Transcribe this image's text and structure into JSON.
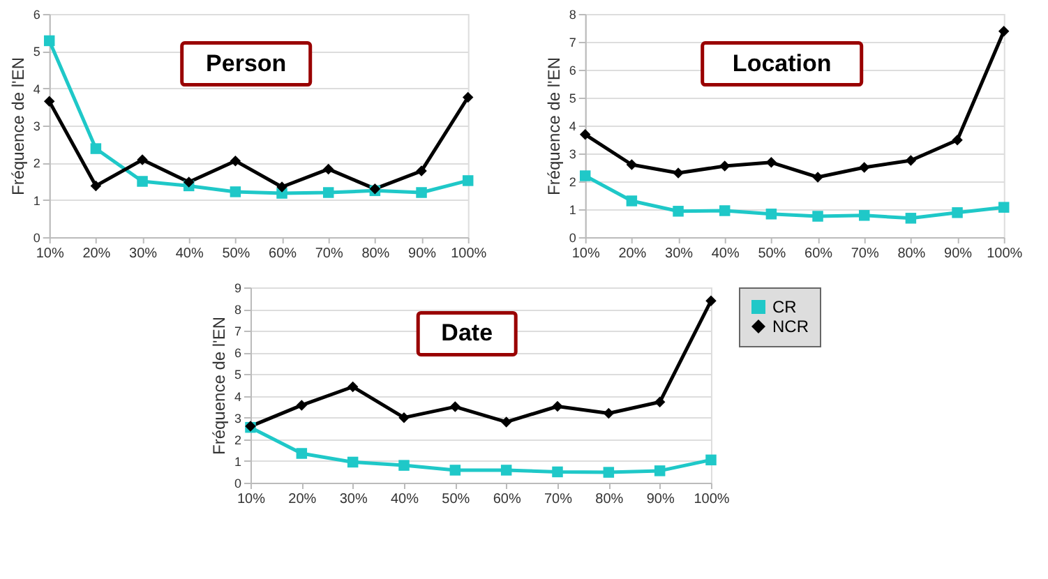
{
  "chart_data": [
    {
      "type": "line",
      "title": "Person",
      "ylabel": "Fréquence de l'EN",
      "categories": [
        "10%",
        "20%",
        "30%",
        "40%",
        "50%",
        "60%",
        "70%",
        "80%",
        "90%",
        "100%"
      ],
      "ylim": [
        0,
        6
      ],
      "yticks": [
        0,
        1,
        2,
        3,
        4,
        5,
        6
      ],
      "grid": "y",
      "legend": false,
      "series": [
        {
          "color": "#1fc8c8",
          "marker": "square",
          "values": [
            5.28,
            2.38,
            1.5,
            1.38,
            1.22,
            1.18,
            1.2,
            1.25,
            1.2,
            1.52
          ]
        },
        {
          "color": "#000000",
          "marker": "diamond",
          "values": [
            3.65,
            1.38,
            2.08,
            1.48,
            2.05,
            1.35,
            1.83,
            1.3,
            1.78,
            3.76
          ]
        }
      ]
    },
    {
      "type": "line",
      "title": "Location",
      "ylabel": "Fréquence de l'EN",
      "categories": [
        "10%",
        "20%",
        "30%",
        "40%",
        "50%",
        "60%",
        "70%",
        "80%",
        "90%",
        "100%"
      ],
      "ylim": [
        0,
        8
      ],
      "yticks": [
        0,
        1,
        2,
        3,
        4,
        5,
        6,
        7,
        8
      ],
      "grid": "y",
      "legend": false,
      "series": [
        {
          "color": "#1fc8c8",
          "marker": "square",
          "values": [
            2.2,
            1.3,
            0.93,
            0.95,
            0.83,
            0.75,
            0.78,
            0.68,
            0.88,
            1.07
          ]
        },
        {
          "color": "#000000",
          "marker": "diamond",
          "values": [
            3.68,
            2.6,
            2.3,
            2.55,
            2.68,
            2.15,
            2.5,
            2.75,
            3.48,
            7.38
          ]
        }
      ]
    },
    {
      "type": "line",
      "title": "Date",
      "ylabel": "Fréquence de l'EN",
      "categories": [
        "10%",
        "20%",
        "30%",
        "40%",
        "50%",
        "60%",
        "70%",
        "80%",
        "90%",
        "100%"
      ],
      "ylim": [
        0,
        9
      ],
      "yticks": [
        0,
        1,
        2,
        3,
        4,
        5,
        6,
        7,
        8,
        9
      ],
      "grid": "y",
      "legend": "right",
      "series": [
        {
          "name": "CR",
          "color": "#1fc8c8",
          "marker": "square",
          "values": [
            2.55,
            1.35,
            0.95,
            0.8,
            0.58,
            0.58,
            0.5,
            0.48,
            0.55,
            1.05
          ]
        },
        {
          "name": "NCR",
          "color": "#000000",
          "marker": "diamond",
          "values": [
            2.6,
            3.57,
            4.42,
            3.0,
            3.5,
            2.8,
            3.52,
            3.2,
            3.72,
            8.38
          ]
        }
      ]
    }
  ]
}
